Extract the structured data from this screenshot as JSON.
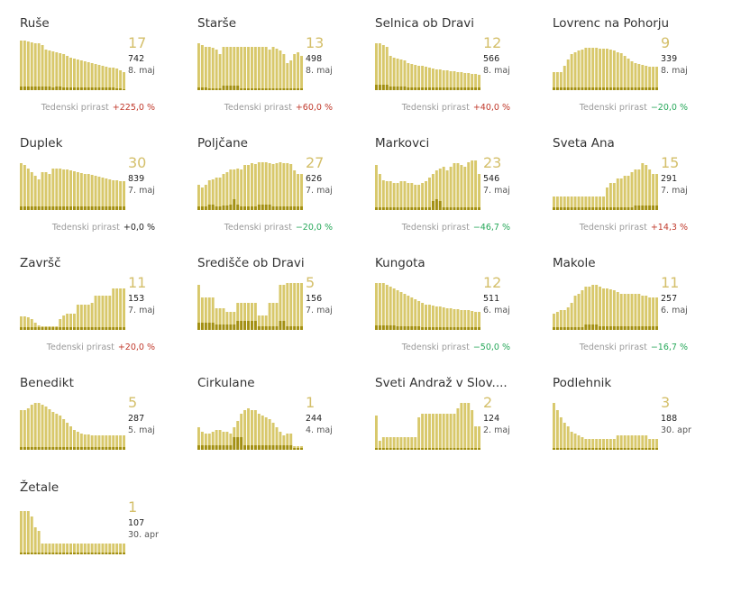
{
  "colors": {
    "bar": "#d8c86b",
    "bar_dark": "#a28f12",
    "big": "#d4bf6a",
    "up": "#c0392b",
    "down": "#27a85a",
    "label": "#9a9a9a"
  },
  "trend_label": "Tedenski prirast",
  "chart_data": [
    {
      "type": "bar",
      "name": "Ruše",
      "latest": "17",
      "total": "742",
      "date": "8. maj",
      "trend": "+225,0 %",
      "trend_dir": "up",
      "values": [
        55,
        55,
        54,
        53,
        52,
        52,
        50,
        45,
        44,
        43,
        42,
        41,
        40,
        38,
        36,
        35,
        34,
        33,
        32,
        31,
        30,
        29,
        28,
        27,
        26,
        25,
        25,
        24,
        22,
        20
      ],
      "values2": [
        4,
        4,
        4,
        4,
        4,
        4,
        4,
        4,
        4,
        3,
        4,
        4,
        3,
        3,
        3,
        3,
        3,
        3,
        3,
        3,
        3,
        3,
        3,
        3,
        3,
        3,
        3,
        2,
        2,
        1
      ]
    },
    {
      "type": "bar",
      "name": "Starše",
      "latest": "13",
      "total": "498",
      "date": "8. maj",
      "trend": "+60,0 %",
      "trend_dir": "up",
      "values": [
        52,
        50,
        48,
        48,
        47,
        45,
        40,
        48,
        48,
        48,
        48,
        48,
        48,
        48,
        48,
        48,
        48,
        48,
        48,
        48,
        45,
        48,
        46,
        44,
        40,
        30,
        33,
        40,
        42,
        38
      ],
      "values2": [
        3,
        3,
        3,
        2,
        2,
        2,
        2,
        5,
        5,
        5,
        5,
        5,
        2,
        2,
        2,
        2,
        2,
        2,
        2,
        2,
        2,
        2,
        2,
        2,
        2,
        2,
        2,
        2,
        2,
        2
      ]
    },
    {
      "type": "bar",
      "name": "Selnica ob Dravi",
      "latest": "12",
      "total": "566",
      "date": "8. maj",
      "trend": "+40,0 %",
      "trend_dir": "up",
      "values": [
        52,
        52,
        50,
        48,
        38,
        36,
        35,
        34,
        33,
        30,
        29,
        28,
        27,
        27,
        26,
        25,
        24,
        23,
        23,
        22,
        22,
        21,
        21,
        20,
        20,
        19,
        19,
        18,
        18,
        17
      ],
      "values2": [
        6,
        6,
        6,
        6,
        4,
        4,
        4,
        4,
        4,
        3,
        3,
        3,
        3,
        3,
        3,
        3,
        3,
        3,
        3,
        3,
        3,
        3,
        3,
        3,
        3,
        3,
        3,
        3,
        3,
        3
      ]
    },
    {
      "type": "bar",
      "name": "Lovrenc na Pohorju",
      "latest": "9",
      "total": "339",
      "date": "8. maj",
      "trend": "−20,0 %",
      "trend_dir": "down",
      "values": [
        20,
        20,
        20,
        27,
        34,
        40,
        42,
        44,
        45,
        47,
        47,
        47,
        47,
        46,
        46,
        46,
        45,
        44,
        42,
        41,
        38,
        35,
        32,
        30,
        29,
        28,
        27,
        26,
        26,
        26
      ],
      "values2": [
        3,
        3,
        3,
        3,
        3,
        3,
        3,
        3,
        3,
        3,
        3,
        3,
        3,
        3,
        3,
        3,
        3,
        3,
        3,
        3,
        3,
        3,
        3,
        3,
        3,
        3,
        3,
        3,
        3,
        3
      ]
    },
    {
      "type": "bar",
      "name": "Duplek",
      "latest": "30",
      "total": "839",
      "date": "7. maj",
      "trend": "+0,0 %",
      "trend_dir": "zero",
      "values": [
        52,
        50,
        46,
        42,
        38,
        34,
        42,
        42,
        40,
        46,
        46,
        46,
        45,
        45,
        44,
        43,
        42,
        41,
        40,
        40,
        39,
        38,
        37,
        36,
        35,
        34,
        33,
        33,
        32,
        32
      ],
      "values2": [
        4,
        4,
        4,
        4,
        4,
        4,
        4,
        4,
        4,
        4,
        4,
        4,
        4,
        4,
        4,
        4,
        4,
        4,
        4,
        4,
        4,
        4,
        4,
        4,
        4,
        4,
        4,
        4,
        4,
        4
      ]
    },
    {
      "type": "bar",
      "name": "Poljčane",
      "latest": "27",
      "total": "626",
      "date": "7. maj",
      "trend": "−20,0 %",
      "trend_dir": "down",
      "values": [
        28,
        25,
        28,
        33,
        34,
        36,
        36,
        40,
        42,
        45,
        45,
        46,
        45,
        50,
        50,
        52,
        51,
        53,
        53,
        53,
        52,
        51,
        52,
        53,
        52,
        52,
        51,
        44,
        40,
        40
      ],
      "values2": [
        4,
        4,
        4,
        6,
        6,
        4,
        4,
        5,
        5,
        6,
        12,
        6,
        4,
        4,
        4,
        4,
        4,
        6,
        6,
        6,
        6,
        4,
        4,
        4,
        4,
        4,
        4,
        4,
        4,
        4
      ]
    },
    {
      "type": "bar",
      "name": "Markovci",
      "latest": "23",
      "total": "546",
      "date": "7. maj",
      "trend": "−46,7 %",
      "trend_dir": "down",
      "values": [
        50,
        40,
        33,
        32,
        32,
        30,
        30,
        32,
        32,
        30,
        30,
        28,
        28,
        30,
        32,
        36,
        40,
        44,
        46,
        48,
        44,
        48,
        52,
        52,
        50,
        48,
        53,
        55,
        55,
        40
      ],
      "values2": [
        3,
        3,
        3,
        3,
        3,
        3,
        3,
        3,
        3,
        3,
        3,
        3,
        3,
        3,
        3,
        3,
        10,
        12,
        10,
        3,
        3,
        3,
        3,
        3,
        3,
        3,
        3,
        3,
        3,
        3
      ]
    },
    {
      "type": "bar",
      "name": "Sveta Ana",
      "latest": "15",
      "total": "291",
      "date": "7. maj",
      "trend": "+14,3 %",
      "trend_dir": "up",
      "values": [
        15,
        15,
        15,
        15,
        15,
        15,
        15,
        15,
        15,
        15,
        15,
        15,
        15,
        15,
        15,
        25,
        30,
        30,
        35,
        35,
        38,
        38,
        42,
        45,
        45,
        52,
        50,
        45,
        40,
        40
      ],
      "values2": [
        3,
        3,
        3,
        3,
        3,
        3,
        3,
        3,
        3,
        3,
        3,
        3,
        3,
        3,
        3,
        3,
        3,
        3,
        3,
        3,
        3,
        3,
        3,
        5,
        5,
        5,
        5,
        5,
        5,
        5
      ]
    },
    {
      "type": "bar",
      "name": "Završč",
      "latest": "11",
      "total": "153",
      "date": "7. maj",
      "trend": "+20,0 %",
      "trend_dir": "up",
      "values": [
        15,
        15,
        14,
        12,
        8,
        5,
        4,
        4,
        4,
        4,
        4,
        12,
        16,
        18,
        18,
        18,
        28,
        28,
        28,
        28,
        30,
        38,
        38,
        38,
        38,
        38,
        46,
        46,
        46,
        46
      ],
      "values2": [
        3,
        3,
        3,
        3,
        3,
        3,
        3,
        3,
        3,
        3,
        3,
        3,
        3,
        3,
        3,
        3,
        3,
        3,
        3,
        3,
        3,
        3,
        3,
        3,
        3,
        3,
        3,
        3,
        3,
        3
      ]
    },
    {
      "type": "bar",
      "name": "Središče ob Dravi",
      "latest": "5",
      "total": "156",
      "date": "7. maj",
      "trend": "",
      "trend_dir": "none",
      "values": [
        50,
        36,
        36,
        36,
        36,
        24,
        24,
        24,
        20,
        20,
        20,
        30,
        30,
        30,
        30,
        30,
        30,
        16,
        16,
        16,
        30,
        30,
        30,
        50,
        50,
        52,
        52,
        52,
        52,
        52
      ],
      "values2": [
        8,
        8,
        8,
        8,
        8,
        6,
        6,
        6,
        6,
        6,
        6,
        10,
        10,
        10,
        10,
        10,
        10,
        4,
        4,
        4,
        4,
        4,
        4,
        10,
        10,
        4,
        4,
        4,
        4,
        4
      ]
    },
    {
      "type": "bar",
      "name": "Kungota",
      "latest": "12",
      "total": "511",
      "date": "6. maj",
      "trend": "−50,0 %",
      "trend_dir": "down",
      "values": [
        52,
        52,
        52,
        50,
        48,
        46,
        44,
        42,
        40,
        38,
        36,
        34,
        32,
        30,
        28,
        28,
        27,
        26,
        26,
        25,
        24,
        24,
        23,
        23,
        22,
        22,
        22,
        21,
        20,
        20
      ],
      "values2": [
        5,
        5,
        5,
        5,
        5,
        5,
        4,
        4,
        4,
        4,
        4,
        4,
        4,
        3,
        3,
        3,
        3,
        3,
        3,
        3,
        3,
        3,
        3,
        3,
        3,
        3,
        3,
        3,
        3,
        3
      ]
    },
    {
      "type": "bar",
      "name": "Makole",
      "latest": "11",
      "total": "257",
      "date": "6. maj",
      "trend": "−16,7 %",
      "trend_dir": "down",
      "values": [
        18,
        20,
        22,
        22,
        25,
        30,
        38,
        40,
        44,
        48,
        48,
        50,
        50,
        48,
        46,
        46,
        45,
        44,
        42,
        40,
        40,
        40,
        40,
        40,
        40,
        38,
        38,
        36,
        36,
        36
      ],
      "values2": [
        3,
        3,
        3,
        3,
        3,
        3,
        3,
        3,
        3,
        6,
        6,
        6,
        6,
        4,
        4,
        4,
        4,
        4,
        4,
        4,
        4,
        4,
        4,
        4,
        4,
        4,
        4,
        4,
        4,
        4
      ]
    },
    {
      "type": "bar",
      "name": "Benedikt",
      "latest": "5",
      "total": "287",
      "date": "5. maj",
      "trend": "",
      "trend_dir": "none",
      "values": [
        44,
        44,
        46,
        50,
        52,
        52,
        50,
        48,
        45,
        42,
        40,
        38,
        34,
        30,
        26,
        22,
        20,
        18,
        17,
        17,
        16,
        16,
        16,
        16,
        16,
        16,
        16,
        16,
        16,
        16
      ],
      "values2": [
        3,
        3,
        3,
        3,
        3,
        3,
        3,
        3,
        3,
        3,
        3,
        3,
        3,
        3,
        3,
        3,
        3,
        3,
        3,
        3,
        3,
        3,
        3,
        3,
        3,
        3,
        3,
        3,
        3,
        3
      ]
    },
    {
      "type": "bar",
      "name": "Cirkulane",
      "latest": "1",
      "total": "244",
      "date": "4. maj",
      "trend": "",
      "trend_dir": "none",
      "values": [
        25,
        20,
        18,
        18,
        20,
        22,
        22,
        20,
        20,
        18,
        25,
        32,
        40,
        44,
        46,
        44,
        44,
        40,
        38,
        36,
        34,
        30,
        25,
        20,
        16,
        18,
        18,
        4,
        4,
        4
      ],
      "values2": [
        5,
        5,
        5,
        5,
        5,
        5,
        5,
        5,
        5,
        5,
        14,
        14,
        14,
        5,
        5,
        5,
        5,
        5,
        5,
        5,
        5,
        5,
        5,
        5,
        5,
        5,
        5,
        2,
        2,
        2
      ]
    },
    {
      "type": "bar",
      "name": "Sveti Andraž v Slov....",
      "latest": "2",
      "total": "124",
      "date": "2. maj",
      "trend": "",
      "trend_dir": "none",
      "values": [
        38,
        10,
        14,
        14,
        14,
        14,
        14,
        14,
        14,
        14,
        14,
        14,
        36,
        40,
        40,
        40,
        40,
        40,
        40,
        40,
        40,
        40,
        40,
        46,
        52,
        52,
        52,
        44,
        26,
        26
      ],
      "values2": [
        2,
        2,
        2,
        2,
        2,
        2,
        2,
        2,
        2,
        2,
        2,
        2,
        2,
        2,
        2,
        2,
        2,
        2,
        2,
        2,
        2,
        2,
        2,
        2,
        2,
        2,
        2,
        2,
        2,
        2
      ]
    },
    {
      "type": "bar",
      "name": "Podlehnik",
      "latest": "3",
      "total": "188",
      "date": "30. apr",
      "trend": "",
      "trend_dir": "none",
      "values": [
        52,
        44,
        36,
        30,
        26,
        20,
        18,
        16,
        14,
        12,
        12,
        12,
        12,
        12,
        12,
        12,
        12,
        12,
        16,
        16,
        16,
        16,
        16,
        16,
        16,
        16,
        16,
        12,
        12,
        12
      ],
      "values2": [
        2,
        2,
        2,
        2,
        2,
        2,
        2,
        2,
        2,
        2,
        2,
        2,
        2,
        2,
        2,
        2,
        2,
        2,
        2,
        2,
        2,
        2,
        2,
        2,
        2,
        2,
        2,
        2,
        2,
        2
      ]
    },
    {
      "type": "bar",
      "name": "Žetale",
      "latest": "1",
      "total": "107",
      "date": "30. apr",
      "trend": "",
      "trend_dir": "none",
      "values": [
        48,
        48,
        48,
        42,
        30,
        26,
        12,
        12,
        12,
        12,
        12,
        12,
        12,
        12,
        12,
        12,
        12,
        12,
        12,
        12,
        12,
        12,
        12,
        12,
        12,
        12,
        12,
        12,
        12,
        12
      ],
      "values2": [
        2,
        2,
        2,
        2,
        2,
        2,
        2,
        2,
        2,
        2,
        2,
        2,
        2,
        2,
        2,
        2,
        2,
        2,
        2,
        2,
        2,
        2,
        2,
        2,
        2,
        2,
        2,
        2,
        2,
        2
      ]
    }
  ]
}
